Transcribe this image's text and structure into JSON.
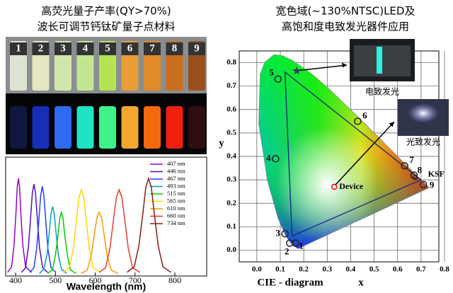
{
  "header": {
    "left": [
      "高荧光量子产率(QY>70%)",
      "波长可调节钙钛矿量子点材料"
    ],
    "right": [
      "宽色域(~130%NTSC)LED及",
      "高饱和度电致发光器件应用"
    ]
  },
  "photo": {
    "vial_labels": [
      "1",
      "2",
      "3",
      "4",
      "5",
      "6",
      "7",
      "8",
      "9"
    ]
  },
  "chart_data": [
    {
      "type": "line",
      "xlabel": "Wavelength (nm)",
      "xlim": [
        375,
        880
      ],
      "ylim": [
        0,
        1
      ],
      "xticks": [
        400,
        500,
        600,
        700,
        800
      ],
      "series": [
        {
          "name": "407 nm",
          "color": "#9900cc",
          "x": [
            380,
            390,
            396,
            401,
            404,
            407,
            410,
            413,
            418,
            425,
            440
          ],
          "values": [
            0.02,
            0.07,
            0.26,
            0.55,
            0.77,
            0.85,
            0.77,
            0.55,
            0.26,
            0.07,
            0.02
          ]
        },
        {
          "name": "446 nm",
          "color": "#4b0fd0",
          "x": [
            415,
            425,
            432,
            438,
            442,
            446,
            450,
            454,
            460,
            468,
            480
          ],
          "values": [
            0.02,
            0.06,
            0.24,
            0.52,
            0.72,
            0.8,
            0.72,
            0.52,
            0.24,
            0.06,
            0.02
          ]
        },
        {
          "name": "467 nm",
          "color": "#1f3fff",
          "x": [
            436,
            446,
            453,
            459,
            463,
            467,
            471,
            475,
            481,
            489,
            501
          ],
          "values": [
            0.02,
            0.06,
            0.23,
            0.51,
            0.7,
            0.78,
            0.7,
            0.51,
            0.23,
            0.06,
            0.02
          ]
        },
        {
          "name": "493 nm",
          "color": "#00a0c0",
          "x": [
            460,
            471,
            479,
            485,
            489,
            493,
            497,
            501,
            507,
            515,
            528
          ],
          "values": [
            0.01,
            0.05,
            0.18,
            0.39,
            0.54,
            0.6,
            0.54,
            0.39,
            0.18,
            0.05,
            0.01
          ]
        },
        {
          "name": "515 nm",
          "color": "#00cc00",
          "x": [
            480,
            492,
            500,
            507,
            511,
            515,
            519,
            523,
            530,
            538,
            552
          ],
          "values": [
            0.01,
            0.04,
            0.17,
            0.36,
            0.5,
            0.55,
            0.5,
            0.36,
            0.17,
            0.04,
            0.01
          ]
        },
        {
          "name": "565 nm",
          "color": "#ffd800",
          "x": [
            520,
            535,
            545,
            553,
            559,
            565,
            571,
            577,
            585,
            595,
            612
          ],
          "values": [
            0.02,
            0.06,
            0.23,
            0.49,
            0.68,
            0.75,
            0.68,
            0.49,
            0.23,
            0.06,
            0.02
          ]
        },
        {
          "name": "610 nm",
          "color": "#ff9900",
          "x": [
            565,
            580,
            590,
            598,
            604,
            610,
            616,
            622,
            630,
            640,
            657
          ],
          "values": [
            0.01,
            0.04,
            0.17,
            0.36,
            0.5,
            0.55,
            0.5,
            0.36,
            0.17,
            0.04,
            0.01
          ]
        },
        {
          "name": "660 nm",
          "color": "#e0402a",
          "x": [
            610,
            626,
            637,
            646,
            653,
            660,
            667,
            674,
            683,
            694,
            712
          ],
          "values": [
            0.02,
            0.06,
            0.23,
            0.49,
            0.68,
            0.75,
            0.68,
            0.49,
            0.23,
            0.06,
            0.02
          ]
        },
        {
          "name": "734 nm",
          "color": "#8b1a1a",
          "x": [
            680,
            698,
            710,
            720,
            727,
            734,
            741,
            748,
            758,
            770,
            790
          ],
          "values": [
            0.02,
            0.07,
            0.26,
            0.55,
            0.77,
            0.85,
            0.77,
            0.55,
            0.26,
            0.07,
            0.02
          ]
        }
      ]
    },
    {
      "type": "scatter",
      "xlabel": "x",
      "ylabel": "y",
      "caption": "CIE - diagram",
      "grid": true,
      "xlim": [
        -0.075,
        0.8
      ],
      "ylim": [
        -0.05,
        0.85
      ],
      "xticks": [
        {
          "value": 0,
          "label": "0.0"
        },
        0.1,
        0.2,
        0.3,
        0.4,
        0.5,
        0.6,
        0.7,
        0.8
      ],
      "yticks": [
        {
          "value": 0,
          "label": "0.0"
        },
        0.1,
        0.2,
        0.3,
        0.4,
        0.5,
        0.6,
        0.7,
        0.8
      ],
      "points": {
        "x": [
          0.165,
          0.14,
          0.12,
          0.08,
          0.09,
          0.43,
          0.63,
          0.67,
          0.71
        ],
        "y": [
          0.03,
          0.03,
          0.07,
          0.39,
          0.73,
          0.55,
          0.36,
          0.32,
          0.28
        ],
        "labels": [
          "1",
          "2",
          "3",
          "4",
          "5",
          "6",
          "7",
          "8",
          "9"
        ]
      },
      "triangle": {
        "x": [
          0.12,
          0.15,
          0.7
        ],
        "y": [
          0.76,
          0.06,
          0.3
        ]
      },
      "star": {
        "x": 0.17,
        "y": 0.765
      },
      "device": {
        "x": 0.33,
        "y": 0.27,
        "label": "Device"
      },
      "ksf": {
        "x": 0.675,
        "y": 0.31,
        "label": "KSF"
      },
      "insets": [
        "电致发光",
        "光致发光"
      ]
    }
  ]
}
